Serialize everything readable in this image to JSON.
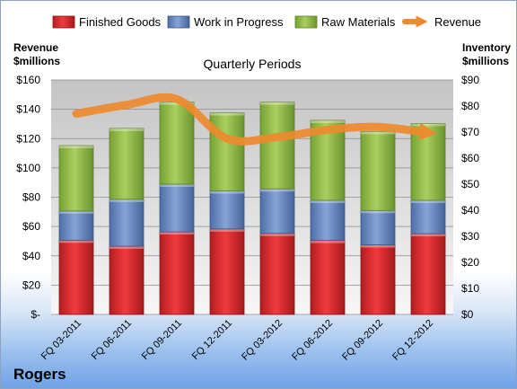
{
  "company": "Rogers",
  "chart_data": {
    "type": "bar",
    "stacked": true,
    "title": "Quarterly Periods",
    "ylabel_left": [
      "Revenue",
      "$millions"
    ],
    "ylabel_right": [
      "Inventory",
      "$millions"
    ],
    "ylim_left": [
      0,
      160
    ],
    "ylim_right": [
      0,
      90
    ],
    "left_ticks": [
      "$-",
      "$20",
      "$40",
      "$60",
      "$80",
      "$100",
      "$120",
      "$140",
      "$160"
    ],
    "right_ticks": [
      "$0",
      "$10",
      "$20",
      "$30",
      "$40",
      "$50",
      "$60",
      "$70",
      "$80",
      "$90"
    ],
    "grid": true,
    "legend_position": "top",
    "categories": [
      "FQ 03-2011",
      "FQ 06-2011",
      "FQ 09-2011",
      "FQ 12-2011",
      "FQ 03-2012",
      "FQ 06-2012",
      "FQ 09-2012",
      "FQ 12-2012"
    ],
    "series": [
      {
        "name": "Finished Goods",
        "axis": "right",
        "color": "#e0292c",
        "values": [
          28.5,
          26.2,
          31.7,
          32.8,
          31.1,
          28.4,
          26.7,
          31.0
        ]
      },
      {
        "name": "Work in Progress",
        "axis": "right",
        "color": "#6d8fc7",
        "values": [
          11.2,
          18.0,
          18.3,
          14.6,
          17.1,
          15.4,
          13.2,
          12.8
        ]
      },
      {
        "name": "Raw Materials",
        "axis": "right",
        "color": "#9ac04c",
        "values": [
          25.1,
          27.2,
          31.5,
          30.0,
          33.3,
          30.7,
          30.3,
          29.5
        ]
      },
      {
        "name": "Revenue",
        "axis": "left",
        "type": "line",
        "color": "#ee8a2e",
        "values": [
          137,
          143,
          147,
          120,
          121,
          126,
          128,
          124
        ]
      }
    ]
  }
}
